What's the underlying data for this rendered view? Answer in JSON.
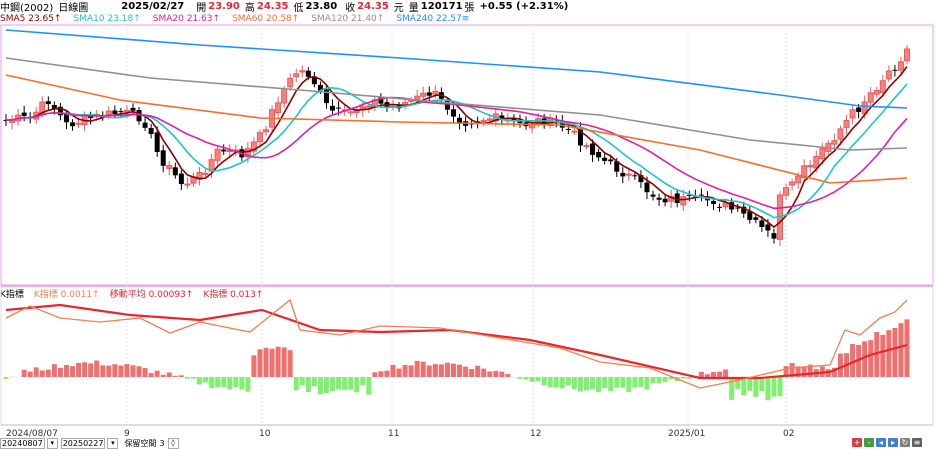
{
  "header": {
    "stock_name": "中鋼(2002)",
    "period": "日線圖",
    "date": "2025/02/27",
    "open_label": "開",
    "open": "23.90",
    "high_label": "高",
    "high": "24.35",
    "low_label": "低",
    "low": "23.80",
    "close_label": "收",
    "close": "24.35",
    "unit": "元",
    "volume_label": "量",
    "volume": "120171",
    "volume_unit": "張",
    "change": "+0.55 (+2.31%)"
  },
  "ma_legend": [
    {
      "label": "SMA5 23.65↑",
      "color": "#8b0000"
    },
    {
      "label": "SMA10 23.18↑",
      "color": "#20c4c4"
    },
    {
      "label": "SMA20 21.63↑",
      "color": "#e020a0"
    },
    {
      "label": "SMA60 20.58↑",
      "color": "#f07030"
    },
    {
      "label": "SMA120 21.40↑",
      "color": "#909090"
    },
    {
      "label": "SMA240 22.57≡",
      "color": "#1e90ff"
    }
  ],
  "indicator_legend": {
    "name": "K指標",
    "items": [
      {
        "label": "K指標 0.0011↑",
        "color": "#f08050"
      },
      {
        "label": "移動平均 0.00093↑",
        "color": "#e8262d"
      },
      {
        "label": "K指標 0.013↑",
        "color": "#e8262d"
      }
    ]
  },
  "x_axis": {
    "labels": [
      "2024/08/07",
      "9",
      "10",
      "11",
      "12",
      "2025/01",
      "02"
    ]
  },
  "controls": {
    "from_date": "20240807",
    "to_date": "20250227",
    "keep_label": "保留空間",
    "keep_value": "3"
  },
  "colors": {
    "up": "#f05a5a",
    "down": "#000000",
    "osc_pos": "#f07070",
    "osc_neg": "#80f070",
    "border": "#f0a0e0"
  },
  "chart_data": {
    "type": "candlestick",
    "series_k": [],
    "note_values": "approximated visually"
  }
}
